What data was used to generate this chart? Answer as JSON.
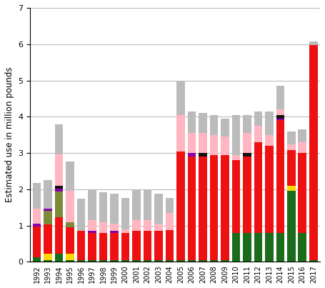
{
  "years": [
    1992,
    1993,
    1994,
    1995,
    1996,
    1997,
    1998,
    1999,
    2000,
    2001,
    2002,
    2003,
    2004,
    2005,
    2006,
    2007,
    2008,
    2009,
    2010,
    2011,
    2012,
    2013,
    2014,
    2015,
    2016,
    2017
  ],
  "ylabel": "Estimated use in million pounds",
  "ylim": [
    0,
    7
  ],
  "yticks": [
    0,
    1,
    2,
    3,
    4,
    5,
    6,
    7
  ],
  "colors": {
    "dark_green": "#1A6B1A",
    "yellow": "#FFD700",
    "red": "#EE1111",
    "pink": "#FFB6C1",
    "olive": "#7B8B3A",
    "purple": "#8B00AA",
    "black": "#111111",
    "gray": "#BBBBBB"
  },
  "segments": {
    "dark_green": [
      0.13,
      0.05,
      0.22,
      0.05,
      0.05,
      0.05,
      0.05,
      0.05,
      0.05,
      0.05,
      0.05,
      0.05,
      0.05,
      0.05,
      0.05,
      0.05,
      0.05,
      0.05,
      0.8,
      0.8,
      0.8,
      0.8,
      0.8,
      1.95,
      0.8,
      0.05
    ],
    "yellow": [
      0.0,
      0.18,
      0.0,
      0.18,
      0.0,
      0.0,
      0.0,
      0.0,
      0.0,
      0.0,
      0.0,
      0.0,
      0.0,
      0.0,
      0.0,
      0.0,
      0.0,
      0.0,
      0.0,
      0.0,
      0.0,
      0.0,
      0.0,
      0.14,
      0.0,
      0.0
    ],
    "red": [
      0.85,
      0.8,
      1.0,
      0.72,
      0.8,
      0.75,
      0.75,
      0.75,
      0.75,
      0.8,
      0.8,
      0.8,
      0.82,
      3.0,
      2.85,
      2.85,
      2.9,
      2.9,
      2.0,
      2.1,
      2.5,
      2.4,
      3.1,
      1.0,
      2.2,
      5.92
    ],
    "olive": [
      0.0,
      0.38,
      0.72,
      0.15,
      0.0,
      0.0,
      0.0,
      0.0,
      0.0,
      0.0,
      0.0,
      0.0,
      0.0,
      0.0,
      0.0,
      0.0,
      0.0,
      0.0,
      0.0,
      0.0,
      0.0,
      0.0,
      0.0,
      0.0,
      0.0,
      0.0
    ],
    "purple": [
      0.08,
      0.05,
      0.08,
      0.0,
      0.0,
      0.05,
      0.0,
      0.05,
      0.0,
      0.0,
      0.0,
      0.0,
      0.0,
      0.0,
      0.1,
      0.0,
      0.0,
      0.0,
      0.0,
      0.0,
      0.0,
      0.0,
      0.05,
      0.0,
      0.0,
      0.0
    ],
    "black": [
      0.0,
      0.0,
      0.07,
      0.0,
      0.0,
      0.0,
      0.0,
      0.0,
      0.0,
      0.0,
      0.0,
      0.0,
      0.0,
      0.0,
      0.0,
      0.1,
      0.0,
      0.0,
      0.0,
      0.1,
      0.0,
      0.0,
      0.1,
      0.0,
      0.0,
      0.0
    ],
    "pink": [
      0.4,
      0.0,
      0.88,
      0.85,
      0.0,
      0.3,
      0.3,
      0.2,
      0.1,
      0.3,
      0.3,
      0.2,
      0.48,
      1.0,
      0.55,
      0.55,
      0.55,
      0.5,
      0.15,
      0.55,
      0.45,
      0.3,
      0.15,
      0.15,
      0.3,
      0.0
    ],
    "gray": [
      0.72,
      0.8,
      0.82,
      0.82,
      0.9,
      0.85,
      0.82,
      0.82,
      0.87,
      0.82,
      0.82,
      0.82,
      0.42,
      0.92,
      0.6,
      0.55,
      0.55,
      0.5,
      1.1,
      0.5,
      0.4,
      0.65,
      0.65,
      0.35,
      0.35,
      0.1
    ]
  },
  "bar_width": 0.75,
  "grid_color": "#BBBBBB",
  "bg_color": "#FFFFFF"
}
